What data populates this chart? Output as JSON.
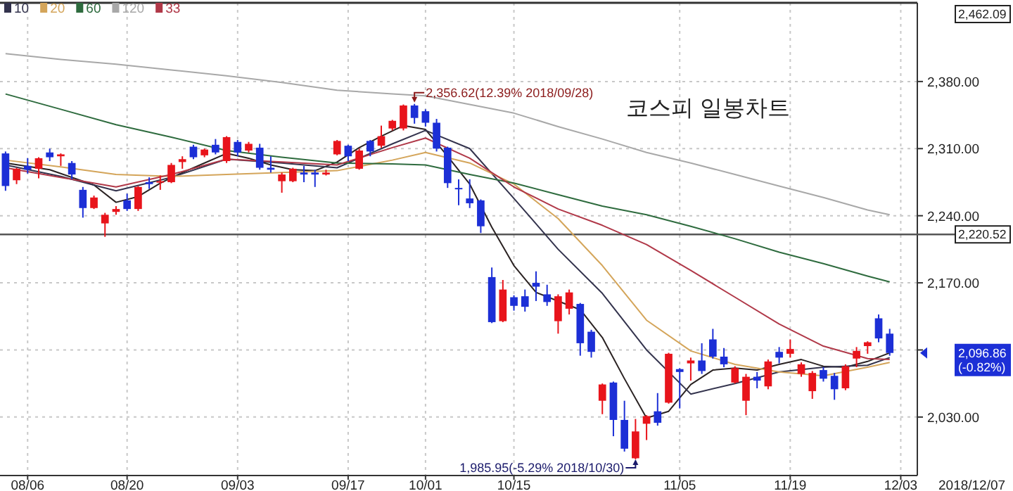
{
  "chart_data": {
    "type": "candlestick",
    "title": "코스피 일봉차트",
    "categories": [
      null,
      null,
      "08/06",
      null,
      null,
      null,
      null,
      null,
      null,
      null,
      null,
      "08/20",
      null,
      null,
      null,
      null,
      null,
      null,
      null,
      null,
      null,
      "09/03",
      null,
      null,
      null,
      null,
      null,
      null,
      null,
      null,
      null,
      "09/17",
      null,
      null,
      null,
      null,
      null,
      null,
      "10/01",
      null,
      null,
      null,
      null,
      null,
      null,
      null,
      "10/15",
      null,
      null,
      null,
      null,
      null,
      null,
      null,
      null,
      null,
      null,
      null,
      null,
      null,
      null,
      "11/05",
      null,
      null,
      null,
      null,
      null,
      null,
      null,
      null,
      null,
      "11/19",
      null,
      null,
      null,
      null,
      null,
      null,
      null,
      null,
      null,
      "12/03",
      null
    ],
    "ohlc": [
      [
        2305,
        2307,
        2266,
        2271
      ],
      [
        2277,
        2290,
        2273,
        2289
      ],
      [
        2292,
        2300,
        2284,
        2288
      ],
      [
        2289,
        2301,
        2279,
        2300
      ],
      [
        2306,
        2310,
        2297,
        2301
      ],
      [
        2302,
        2305,
        2292,
        2304
      ],
      [
        2295,
        2297,
        2278,
        2283
      ],
      [
        2267,
        2270,
        2238,
        2248
      ],
      [
        2248,
        2261,
        2247,
        2259
      ],
      [
        2232,
        2243,
        2218,
        2241
      ],
      [
        2244,
        2250,
        2241,
        2247
      ],
      [
        2256,
        2263,
        2245,
        2247
      ],
      [
        2247,
        2271,
        2245,
        2270
      ],
      [
        2275,
        2280,
        2268,
        2273
      ],
      [
        2275,
        2282,
        2267,
        2276
      ],
      [
        2275,
        2295,
        2274,
        2293
      ],
      [
        2296,
        2302,
        2289,
        2299
      ],
      [
        2312,
        2314,
        2299,
        2301
      ],
      [
        2303,
        2310,
        2301,
        2309
      ],
      [
        2314,
        2320,
        2304,
        2306
      ],
      [
        2297,
        2323,
        2295,
        2322
      ],
      [
        2317,
        2319,
        2302,
        2306
      ],
      [
        2308,
        2317,
        2306,
        2315
      ],
      [
        2311,
        2315,
        2288,
        2290
      ],
      [
        2290,
        2302,
        2285,
        2288
      ],
      [
        2276,
        2285,
        2264,
        2283
      ],
      [
        2276,
        2290,
        2275,
        2289
      ],
      [
        2285,
        2292,
        2275,
        2283
      ],
      [
        2285,
        2288,
        2270,
        2283
      ],
      [
        2283,
        2288,
        2282,
        2285
      ],
      [
        2304,
        2319,
        2303,
        2318
      ],
      [
        2313,
        2314,
        2297,
        2302
      ],
      [
        2289,
        2310,
        2288,
        2308
      ],
      [
        2318,
        2319,
        2302,
        2307
      ],
      [
        2313,
        2334,
        2311,
        2323
      ],
      [
        2331,
        2340,
        2329,
        2339
      ],
      [
        2331,
        2356,
        2329,
        2355
      ],
      [
        2355,
        2356.62,
        2336,
        2342
      ],
      [
        2349,
        2351,
        2333,
        2337
      ],
      [
        2337,
        2341,
        2307,
        2310
      ],
      [
        2311,
        2312,
        2269,
        2274
      ],
      [
        2269,
        2278,
        2251,
        2268
      ],
      [
        2258,
        2278,
        2248,
        2253
      ],
      [
        2256,
        2257,
        2222,
        2229
      ],
      [
        2176,
        2186,
        2128,
        2129
      ],
      [
        2130,
        2173,
        2129,
        2163
      ],
      [
        2155,
        2157,
        2141,
        2146
      ],
      [
        2156,
        2163,
        2140,
        2145
      ],
      [
        2170,
        2182,
        2151,
        2166
      ],
      [
        2158,
        2168,
        2146,
        2150
      ],
      [
        2130,
        2158,
        2117,
        2156
      ],
      [
        2143,
        2163,
        2137,
        2160
      ],
      [
        2148,
        2149,
        2094,
        2107
      ],
      [
        2119,
        2121,
        2092,
        2098
      ],
      [
        2047,
        2065,
        2033,
        2064
      ],
      [
        2066,
        2067,
        2010,
        2027
      ],
      [
        2027,
        2047,
        1994,
        1997
      ],
      [
        1987,
        2028,
        1985.95,
        2015
      ],
      [
        2023,
        2032,
        2006,
        2031
      ],
      [
        2036,
        2055,
        2021,
        2024
      ],
      [
        2045,
        2097,
        2044,
        2096
      ],
      [
        2080,
        2081,
        2039,
        2077
      ],
      [
        2086,
        2092,
        2068,
        2089
      ],
      [
        2089,
        2107,
        2075,
        2078
      ],
      [
        2111,
        2122,
        2091,
        2093
      ],
      [
        2093,
        2102,
        2082,
        2085
      ],
      [
        2066,
        2083,
        2065,
        2081
      ],
      [
        2047,
        2075,
        2032,
        2072
      ],
      [
        2072,
        2077,
        2060,
        2068
      ],
      [
        2062,
        2090,
        2059,
        2088
      ],
      [
        2098,
        2103,
        2086,
        2092
      ],
      [
        2096,
        2111,
        2092,
        2101
      ],
      [
        2075,
        2087,
        2072,
        2085
      ],
      [
        2057,
        2078,
        2049,
        2076
      ],
      [
        2079,
        2082,
        2067,
        2070
      ],
      [
        2073,
        2076,
        2048,
        2059
      ],
      [
        2060,
        2085,
        2058,
        2083
      ],
      [
        2091,
        2103,
        2082,
        2099
      ],
      [
        2104,
        2109,
        2096,
        2108
      ],
      [
        2133,
        2137,
        2108,
        2112
      ],
      [
        2117,
        2122,
        2094,
        2096.86
      ],
      null,
      null
    ],
    "colors": [
      "#1c2fd6",
      "#e8141b",
      "#1c2fd6",
      "#e8141b",
      "#1c2fd6",
      "#e8141b",
      "#1c2fd6",
      "#1c2fd6",
      "#e8141b",
      "#e8141b",
      "#e8141b",
      "#1c2fd6",
      "#e8141b",
      "#1c2fd6",
      "#e8141b",
      "#e8141b",
      "#e8141b",
      "#1c2fd6",
      "#e8141b",
      "#1c2fd6",
      "#e8141b",
      "#1c2fd6",
      "#e8141b",
      "#1c2fd6",
      "#1c2fd6",
      "#e8141b",
      "#e8141b",
      "#1c2fd6",
      "#1c2fd6",
      "#e8141b",
      "#e8141b",
      "#1c2fd6",
      "#e8141b",
      "#1c2fd6",
      "#e8141b",
      "#e8141b",
      "#e8141b",
      "#1c2fd6",
      "#1c2fd6",
      "#1c2fd6",
      "#1c2fd6",
      "#1c2fd6",
      "#1c2fd6",
      "#1c2fd6",
      "#1c2fd6",
      "#e8141b",
      "#1c2fd6",
      "#1c2fd6",
      "#1c2fd6",
      "#1c2fd6",
      "#e8141b",
      "#e8141b",
      "#1c2fd6",
      "#1c2fd6",
      "#e8141b",
      "#1c2fd6",
      "#1c2fd6",
      "#e8141b",
      "#e8141b",
      "#1c2fd6",
      "#e8141b",
      "#1c2fd6",
      "#e8141b",
      "#1c2fd6",
      "#1c2fd6",
      "#1c2fd6",
      "#e8141b",
      "#e8141b",
      "#1c2fd6",
      "#e8141b",
      "#1c2fd6",
      "#e8141b",
      "#e8141b",
      "#e8141b",
      "#1c2fd6",
      "#1c2fd6",
      "#e8141b",
      "#e8141b",
      "#e8141b",
      "#1c2fd6",
      "#1c2fd6",
      null,
      null
    ],
    "series": [
      {
        "type": "line",
        "color": "#2a2222",
        "values": [
          2295,
          null,
          null,
          null,
          2288,
          null,
          null,
          null,
          2272,
          null,
          2254,
          null,
          2260,
          null,
          2274,
          null,
          2285,
          null,
          2295,
          null,
          2305,
          null,
          2300,
          null,
          2293,
          null,
          2288,
          null,
          2287,
          null,
          2296,
          null,
          2311,
          null,
          2323,
          null,
          2334,
          null,
          2330,
          null,
          2302,
          null,
          2273,
          null,
          2228,
          null,
          2188,
          null,
          2160,
          null,
          2151,
          null,
          2142,
          null,
          2113,
          null,
          2070,
          null,
          2029,
          null,
          2036,
          null,
          2064,
          null,
          2079,
          null,
          2081,
          null,
          2079,
          null,
          2085,
          null,
          2090,
          null,
          2083,
          null,
          2082,
          null,
          2088,
          null,
          2097,
          null,
          null
        ]
      },
      {
        "type": "line",
        "name": "10",
        "color": "#33334d",
        "values": [
          2293,
          null,
          null,
          null,
          null,
          2281,
          null,
          null,
          null,
          null,
          2266,
          null,
          null,
          null,
          null,
          2280,
          null,
          null,
          null,
          null,
          2299,
          null,
          null,
          null,
          null,
          2295,
          null,
          null,
          null,
          null,
          2290,
          null,
          null,
          null,
          null,
          2315,
          null,
          null,
          2329,
          null,
          null,
          null,
          2310,
          null,
          null,
          null,
          2258,
          null,
          null,
          null,
          2205,
          null,
          null,
          null,
          2159,
          null,
          null,
          null,
          2100,
          null,
          null,
          null,
          2054,
          null,
          null,
          null,
          2065,
          null,
          null,
          null,
          2077,
          null,
          null,
          null,
          2082,
          null,
          null,
          null,
          2084,
          null,
          2092,
          null,
          null
        ]
      },
      {
        "type": "line",
        "name": "20",
        "color": "#d4a55a",
        "values": [
          2298,
          null,
          null,
          null,
          null,
          2291,
          null,
          null,
          null,
          null,
          2283,
          null,
          null,
          null,
          null,
          2281,
          null,
          null,
          null,
          null,
          2283,
          null,
          null,
          null,
          null,
          2285,
          null,
          null,
          null,
          null,
          2287,
          null,
          null,
          null,
          null,
          2298,
          null,
          null,
          2306,
          null,
          null,
          null,
          2295,
          null,
          null,
          null,
          2273,
          null,
          null,
          null,
          2237,
          null,
          null,
          null,
          2188,
          null,
          null,
          null,
          2131,
          null,
          null,
          null,
          2099,
          null,
          null,
          null,
          2085,
          null,
          null,
          null,
          2077,
          null,
          null,
          null,
          2073,
          null,
          null,
          null,
          2082,
          null,
          2087,
          null,
          null
        ]
      },
      {
        "type": "line",
        "name": "60",
        "color": "#2e6b3e",
        "values": [
          2367,
          null,
          null,
          null,
          null,
          2351,
          null,
          null,
          null,
          null,
          2335,
          null,
          null,
          null,
          null,
          2322,
          null,
          null,
          null,
          null,
          2308,
          null,
          null,
          null,
          null,
          2301,
          null,
          null,
          null,
          null,
          2295,
          null,
          null,
          null,
          null,
          2294,
          null,
          null,
          2293,
          null,
          null,
          null,
          2283,
          null,
          null,
          null,
          2274,
          null,
          null,
          null,
          2262,
          null,
          null,
          null,
          2250,
          null,
          null,
          null,
          2241,
          null,
          null,
          null,
          2229,
          null,
          null,
          null,
          2216,
          null,
          null,
          null,
          2202,
          null,
          null,
          null,
          2190,
          null,
          null,
          null,
          2177,
          null,
          2171,
          null,
          null
        ]
      },
      {
        "type": "line",
        "name": "120",
        "color": "#a8a8a8",
        "values": [
          2409,
          null,
          null,
          null,
          null,
          2403,
          null,
          null,
          null,
          null,
          2398,
          null,
          null,
          null,
          null,
          2392,
          null,
          null,
          null,
          null,
          2386,
          null,
          null,
          null,
          null,
          2379,
          null,
          null,
          null,
          null,
          2371,
          null,
          null,
          null,
          null,
          2367,
          null,
          null,
          2365,
          null,
          null,
          null,
          2356,
          null,
          null,
          null,
          2347,
          null,
          null,
          null,
          2333,
          null,
          null,
          null,
          2320,
          null,
          null,
          null,
          2306,
          null,
          null,
          null,
          2295,
          null,
          null,
          null,
          2283,
          null,
          null,
          null,
          2271,
          null,
          null,
          null,
          2259,
          null,
          null,
          null,
          2246,
          null,
          2241,
          null,
          null
        ]
      },
      {
        "type": "line",
        "name": "33",
        "color": "#b03848",
        "values": [
          2290,
          null,
          null,
          null,
          null,
          2280,
          null,
          null,
          null,
          null,
          2270,
          null,
          null,
          null,
          null,
          2283,
          null,
          null,
          null,
          null,
          2299,
          null,
          null,
          null,
          null,
          2296,
          null,
          null,
          null,
          null,
          2293,
          null,
          null,
          null,
          null,
          2311,
          null,
          null,
          2321,
          null,
          null,
          null,
          2300,
          null,
          null,
          null,
          2270,
          null,
          null,
          null,
          2247,
          null,
          null,
          null,
          2230,
          null,
          null,
          null,
          2210,
          null,
          null,
          null,
          2183,
          null,
          null,
          null,
          2155,
          null,
          null,
          null,
          2127,
          null,
          null,
          null,
          2104,
          null,
          null,
          null,
          2091,
          null,
          2090,
          null,
          null
        ]
      }
    ],
    "ylim": [
      1969,
      2462.09
    ],
    "yticks": [
      {
        "value": 2030,
        "label": "2,030.00"
      },
      {
        "value": 2100,
        "label": null
      },
      {
        "value": 2170,
        "label": "2,170.00"
      },
      {
        "value": 2240,
        "label": "2,240.00"
      },
      {
        "value": 2310,
        "label": "2,310.00"
      },
      {
        "value": 2380,
        "label": "2,380.00"
      }
    ],
    "ref_lines": [
      {
        "axis": "y",
        "value": 2220.52,
        "label": "2,220.52",
        "color": "#555555"
      }
    ],
    "annotations": [
      "2,356.62(12.39% 2018/09/28)",
      "1,985.95(-5.29% 2018/10/30)",
      "2,096.86 (-0.82%)",
      "2,462.09",
      "2018/12/07"
    ],
    "grid": true,
    "legend": "top left"
  }
}
